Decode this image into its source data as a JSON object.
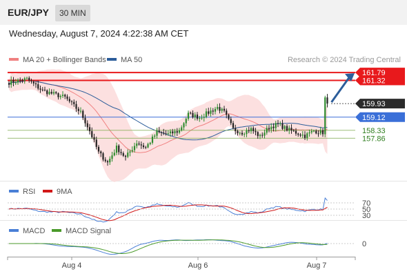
{
  "header": {
    "symbol": "EUR/JPY",
    "interval": "30 MIN",
    "datetime": "Wednesday, August 7, 2024 4:22:38 AM CET"
  },
  "legend": {
    "ma20": {
      "label": "MA 20 + Bollinger Bands",
      "color": "#f08080"
    },
    "ma50": {
      "label": "MA 50",
      "color": "#2c5d9a"
    }
  },
  "copyright": "Research © 2024 Trading Central",
  "colors": {
    "up": "#2e8b2e",
    "down": "#222222",
    "bollinger_fill": "#fbd5d5",
    "resistance": "#e8191c",
    "pivot": "#3a6fd8",
    "support": "#7aa84a",
    "arrow": "#2c5d9a",
    "rsi": "#4a7fd6",
    "rsi_ma": "#d11818",
    "macd": "#4a7fd6",
    "macd_signal": "#4a9a2a"
  },
  "chart_data": [
    {
      "type": "candlestick",
      "title": "EUR/JPY",
      "interval": "30 MIN",
      "x_tick_labels": [
        "Aug 4",
        "Aug 6",
        "Aug 7"
      ],
      "ylim": [
        155.6,
        162.0
      ],
      "levels": [
        {
          "label": "161.79",
          "value": 161.79,
          "kind": "resistance"
        },
        {
          "label": "161.32",
          "value": 161.32,
          "kind": "resistance"
        },
        {
          "label": "159.93",
          "value": 159.93,
          "kind": "last"
        },
        {
          "label": "159.12",
          "value": 159.12,
          "kind": "pivot"
        },
        {
          "label": "158.33",
          "value": 158.33,
          "kind": "support"
        },
        {
          "label": "157.86",
          "value": 157.86,
          "kind": "support"
        }
      ],
      "key_points": [
        {
          "x": 0,
          "y": 161.2
        },
        {
          "x": 8,
          "y": 161.4
        },
        {
          "x": 15,
          "y": 160.7
        },
        {
          "x": 25,
          "y": 160.3
        },
        {
          "x": 32,
          "y": 159.4
        },
        {
          "x": 36,
          "y": 158.3
        },
        {
          "x": 40,
          "y": 157.0
        },
        {
          "x": 44,
          "y": 156.4
        },
        {
          "x": 48,
          "y": 157.3
        },
        {
          "x": 52,
          "y": 156.7
        },
        {
          "x": 57,
          "y": 157.6
        },
        {
          "x": 61,
          "y": 157.3
        },
        {
          "x": 66,
          "y": 158.2
        },
        {
          "x": 71,
          "y": 158.1
        },
        {
          "x": 76,
          "y": 158.3
        },
        {
          "x": 80,
          "y": 159.3
        },
        {
          "x": 85,
          "y": 159.1
        },
        {
          "x": 89,
          "y": 159.4
        },
        {
          "x": 93,
          "y": 159.7
        },
        {
          "x": 96,
          "y": 159.4
        },
        {
          "x": 100,
          "y": 158.4
        },
        {
          "x": 104,
          "y": 158.2
        },
        {
          "x": 108,
          "y": 158.4
        },
        {
          "x": 112,
          "y": 157.95
        },
        {
          "x": 116,
          "y": 158.5
        },
        {
          "x": 120,
          "y": 158.7
        },
        {
          "x": 124,
          "y": 158.4
        },
        {
          "x": 128,
          "y": 158.2
        },
        {
          "x": 132,
          "y": 158.0
        },
        {
          "x": 136,
          "y": 158.3
        },
        {
          "x": 140,
          "y": 158.2
        },
        {
          "x": 141,
          "y": 160.3
        },
        {
          "x": 142,
          "y": 159.93
        }
      ],
      "series": [
        {
          "name": "MA 20 + Bollinger Bands"
        },
        {
          "name": "MA 50"
        }
      ]
    },
    {
      "type": "line",
      "title": "RSI",
      "series": [
        {
          "name": "RSI"
        },
        {
          "name": "9MA"
        }
      ],
      "y_tick_labels": [
        "70",
        "50",
        "30"
      ]
    },
    {
      "type": "line",
      "title": "MACD",
      "series": [
        {
          "name": "MACD"
        },
        {
          "name": "MACD Signal"
        }
      ],
      "y_tick_labels": [
        "0"
      ]
    }
  ]
}
